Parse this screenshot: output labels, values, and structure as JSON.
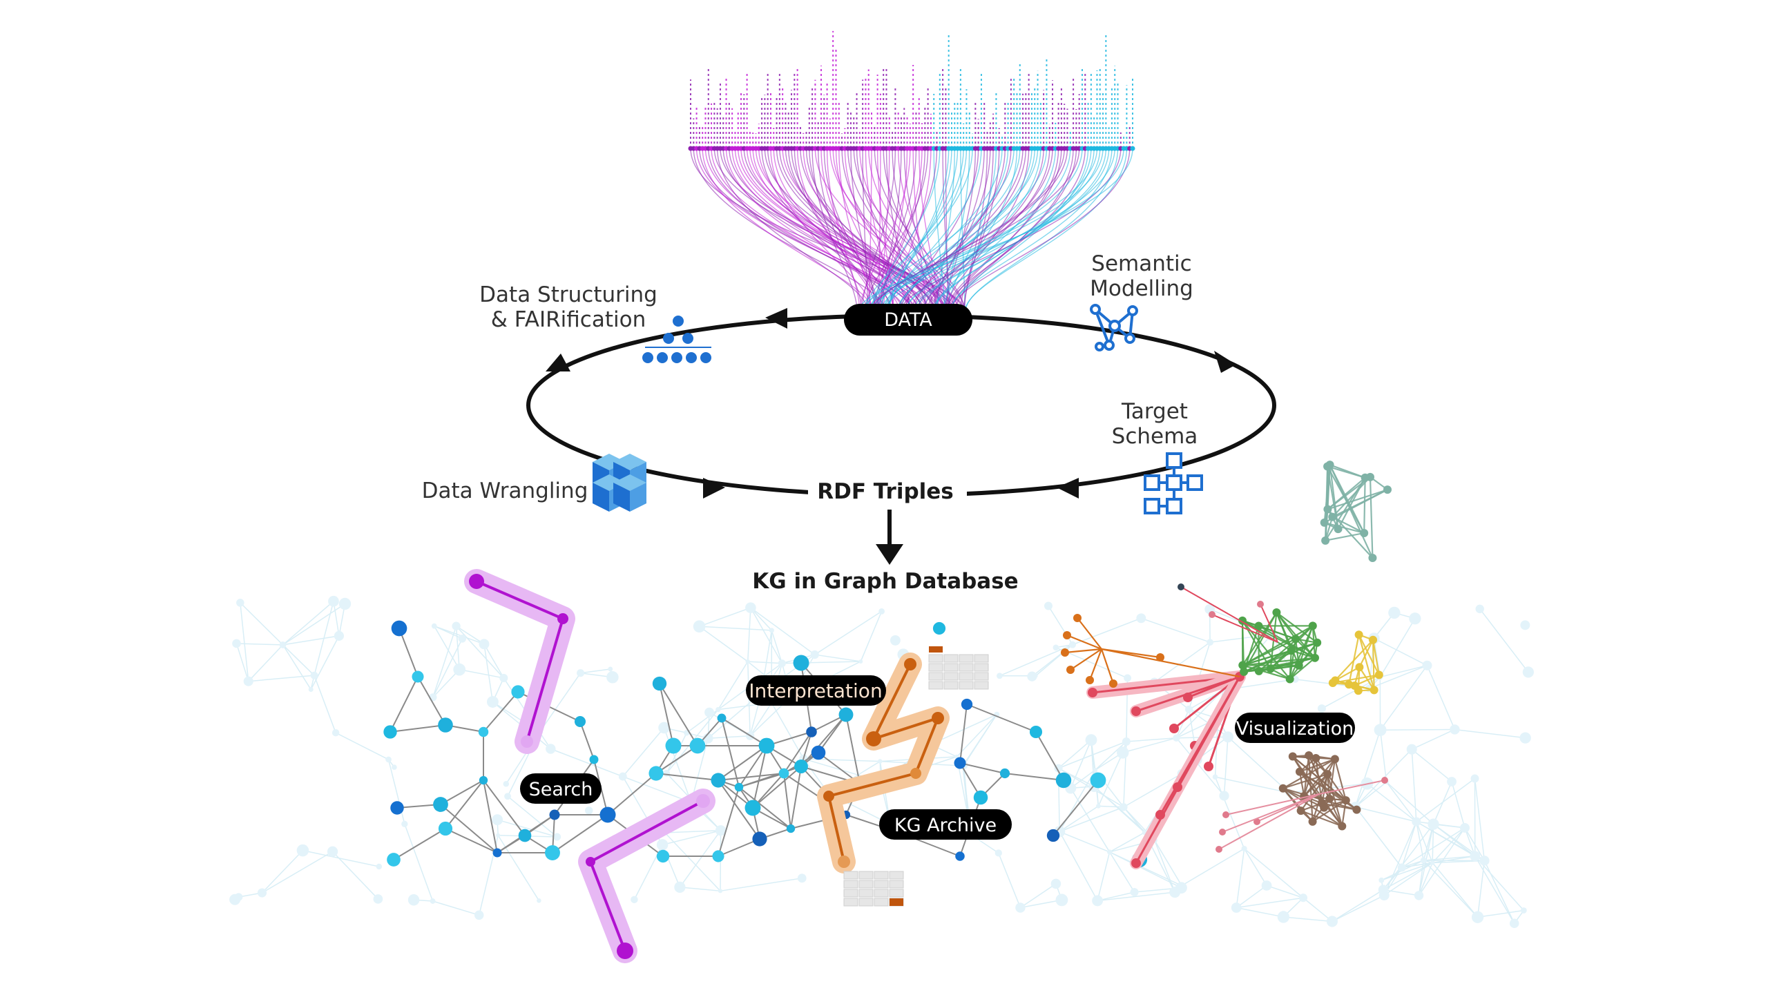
{
  "diagram": {
    "data_pill": "DATA",
    "rdf_label": "RDF Triples",
    "kg_label": "KG in Graph Database",
    "steps": [
      {
        "line1": "Data Structuring",
        "line2": "& FAIRification",
        "icon": "hierarchy-icon"
      },
      {
        "line1": "Semantic",
        "line2": "Modelling",
        "icon": "network-icon"
      },
      {
        "line1": "Target",
        "line2": "Schema",
        "icon": "schema-icon"
      },
      {
        "line1": "Data Wrangling",
        "line2": "",
        "icon": "cubes-icon"
      }
    ],
    "graph_labels": {
      "interpretation": "Interpretation",
      "search": "Search",
      "kg_archive": "KG Archive",
      "visualization": "Visualization"
    }
  },
  "colors": {
    "purple": "#8e1fb0",
    "magenta": "#c21fd6",
    "cyan": "#1fb8e0",
    "blue": "#1570d0",
    "orange": "#d9701a",
    "red": "#e0485e",
    "green": "#4ea34a",
    "yellow": "#e6c43a",
    "brown": "#8a6a56",
    "teal": "#7fb2a6",
    "pill": "#000000"
  }
}
